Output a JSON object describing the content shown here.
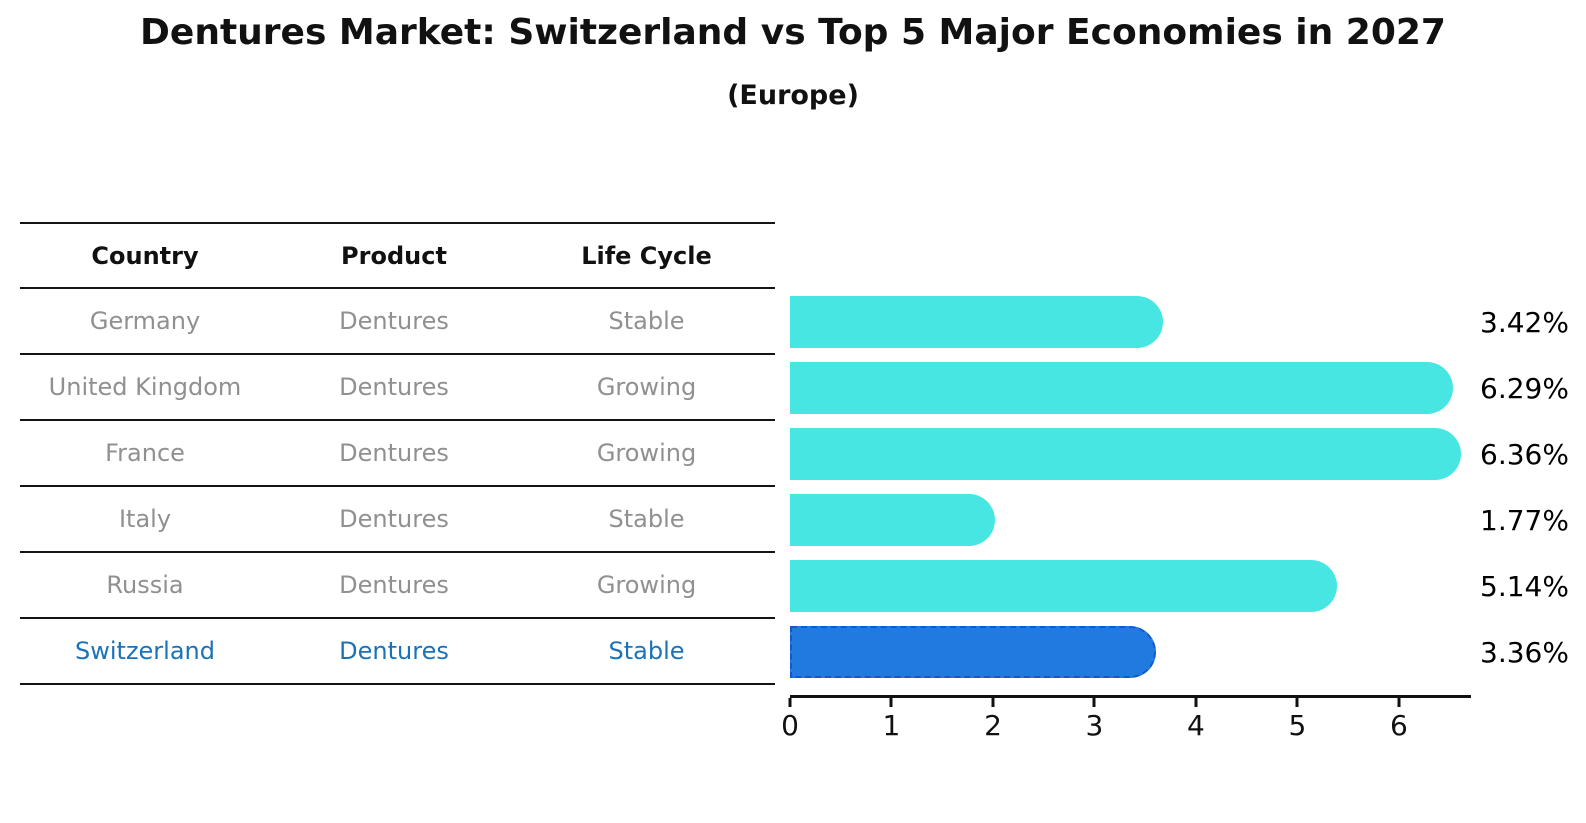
{
  "chart_data": {
    "type": "bar",
    "orientation": "horizontal",
    "title": "Dentures Market: Switzerland vs Top 5 Major Economies in 2027",
    "subtitle": "(Europe)",
    "categories": [
      "Germany",
      "United Kingdom",
      "France",
      "Italy",
      "Russia",
      "Switzerland"
    ],
    "values": [
      3.42,
      6.29,
      6.36,
      1.77,
      5.14,
      3.36
    ],
    "value_labels": [
      "3.42%",
      "6.29%",
      "6.36%",
      "1.77%",
      "5.14%",
      "3.36%"
    ],
    "highlight_index": 5,
    "xlim": [
      0,
      6.71
    ],
    "x_ticks": [
      "0",
      "1",
      "2",
      "3",
      "4",
      "5",
      "6"
    ],
    "grid": false,
    "legend": false
  },
  "table": {
    "headers": [
      "Country",
      "Product",
      "Life Cycle"
    ],
    "rows": [
      {
        "country": "Germany",
        "product": "Dentures",
        "life_cycle": "Stable"
      },
      {
        "country": "United Kingdom",
        "product": "Dentures",
        "life_cycle": "Growing"
      },
      {
        "country": "France",
        "product": "Dentures",
        "life_cycle": "Growing"
      },
      {
        "country": "Italy",
        "product": "Dentures",
        "life_cycle": "Stable"
      },
      {
        "country": "Russia",
        "product": "Dentures",
        "life_cycle": "Growing"
      },
      {
        "country": "Switzerland",
        "product": "Dentures",
        "life_cycle": "Stable"
      }
    ]
  },
  "colors": {
    "bar": "#48e6e3",
    "highlight_bar": "#217ae0",
    "highlight_bar_border": "#1259cf",
    "highlight_text": "#1a73b8",
    "row_text": "#909090",
    "header_text": "#111111",
    "axis": "#111111"
  }
}
